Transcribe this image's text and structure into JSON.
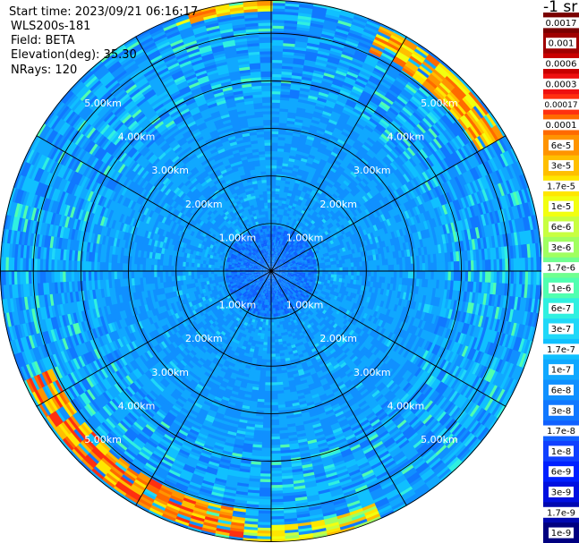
{
  "header": {
    "start_time": "Start time: 2023/09/21 06:16:17",
    "instrument": "WLS200s-181",
    "field": "Field: BETA",
    "elevation": "Elevation(deg): 35.30",
    "nrays": "NRays: 120"
  },
  "colorbar": {
    "unit_label": "-1 sr",
    "labels": [
      "0.0017",
      "0.001",
      "0.0006",
      "0.0003",
      "0.00017",
      "0.0001",
      "6e-5",
      "3e-5",
      "1.7e-5",
      "1e-5",
      "6e-6",
      "3e-6",
      "1.7e-6",
      "1e-6",
      "6e-7",
      "3e-7",
      "1.7e-7",
      "1e-7",
      "6e-8",
      "3e-8",
      "1.7e-8",
      "1e-8",
      "6e-9",
      "3e-9",
      "1.7e-9",
      "1e-9"
    ],
    "colors": [
      "#7a0000",
      "#a00000",
      "#c80000",
      "#ee1010",
      "#ff3010",
      "#ff6a00",
      "#ff9400",
      "#ffbf00",
      "#ffe600",
      "#f2ff10",
      "#c8ff40",
      "#a0ff60",
      "#70ff90",
      "#50ffb0",
      "#30f0e0",
      "#20d8f8",
      "#10c0ff",
      "#10a8ff",
      "#1090ff",
      "#1078ff",
      "#1060ff",
      "#1040ff",
      "#0020ff",
      "#0010e0",
      "#0008b0",
      "#000080"
    ]
  },
  "chart_data": {
    "type": "heatmap",
    "projection": "polar (PPI scan)",
    "range_rings": [
      {
        "label": "1.00km"
      },
      {
        "label": "2.00km"
      },
      {
        "label": "3.00km"
      },
      {
        "label": "4.00km"
      },
      {
        "label": "5.00km"
      }
    ],
    "ring_km": [
      1,
      2,
      3,
      4,
      5,
      5.7
    ],
    "max_range_km": 5.7,
    "azimuth_lines_deg": [
      0,
      30,
      60,
      90,
      120,
      150,
      180,
      210,
      240,
      270,
      300,
      330
    ],
    "nrays": 120,
    "field": "BETA",
    "typical_value": "1e-7",
    "high_value_arcs": [
      {
        "azimuth_range_deg": [
          25,
          60
        ],
        "range_km": [
          5.0,
          5.6
        ],
        "value": "3e-5"
      },
      {
        "azimuth_range_deg": [
          185,
          245
        ],
        "range_km": [
          5.0,
          5.6
        ],
        "value": "6e-5"
      },
      {
        "azimuth_range_deg": [
          340,
          360
        ],
        "range_km": [
          5.4,
          5.7
        ],
        "value": "3e-5"
      },
      {
        "azimuth_range_deg": [
          155,
          185
        ],
        "range_km": [
          5.3,
          5.7
        ],
        "value": "1e-5"
      }
    ]
  }
}
